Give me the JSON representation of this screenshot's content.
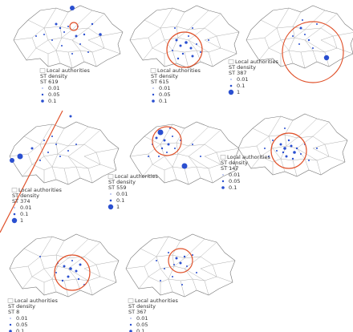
{
  "layer": "Local authorities",
  "density": "ST density",
  "panels": [
    {
      "label": "ST 619",
      "legend": [
        "0.01",
        "0.05",
        "0.1"
      ]
    },
    {
      "label": "ST 615",
      "legend": [
        "0.01",
        "0.05",
        "0.1"
      ]
    },
    {
      "label": "ST 387",
      "legend": [
        "0.01",
        "0.1",
        "1"
      ]
    },
    {
      "label": "ST 374",
      "legend": [
        "0.01",
        "0.1",
        "1"
      ]
    },
    {
      "label": "ST 559",
      "legend": [
        "0.01",
        "0.1",
        "1"
      ]
    },
    {
      "label": "ST 147",
      "legend": [
        "0.01",
        "0.05",
        "0.1"
      ]
    },
    {
      "label": "ST 8",
      "legend": [
        "0.01",
        "0.05",
        "0.1"
      ]
    },
    {
      "label": "ST 367",
      "legend": [
        "0.01",
        "0.05",
        "0.1"
      ]
    }
  ]
}
